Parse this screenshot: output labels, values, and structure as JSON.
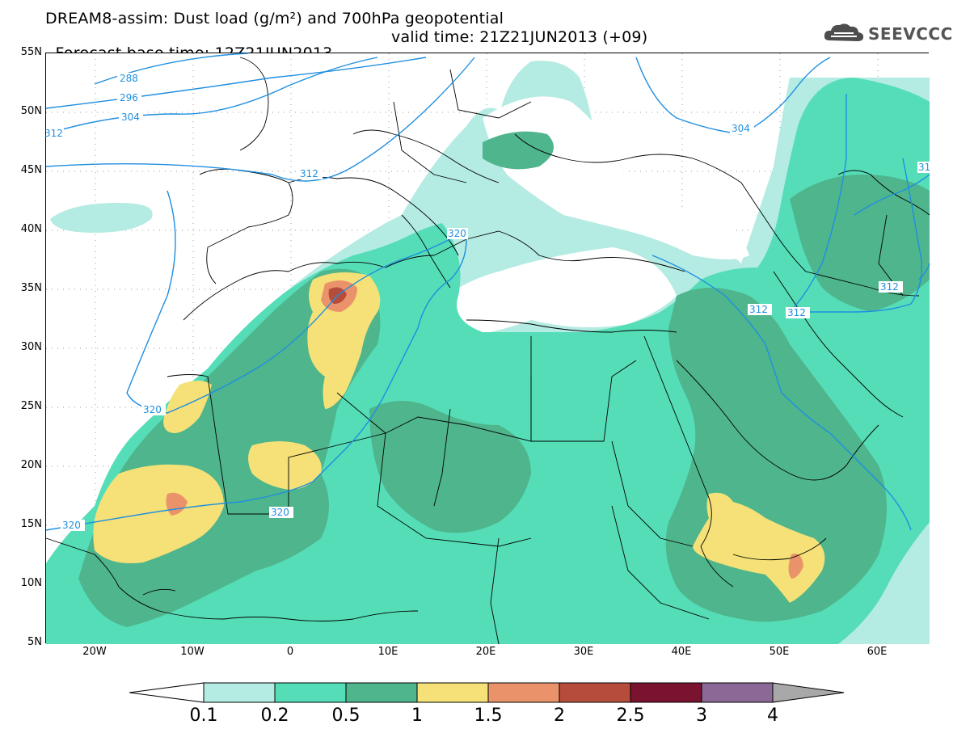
{
  "title": {
    "line1": "DREAM8-assim: Dust load (g/m²) and 700hPa geopotential",
    "line2_base": "Forecast base time: 12Z21JUN2013",
    "line2_valid": "valid time: 21Z21JUN2013 (+09)"
  },
  "logo": {
    "text": "SEEVCCC",
    "icon": "cloud-icon"
  },
  "axes": {
    "lat_labels": [
      "55N",
      "50N",
      "45N",
      "40N",
      "35N",
      "30N",
      "25N",
      "20N",
      "15N",
      "10N",
      "5N"
    ],
    "lon_labels": [
      "20W",
      "10W",
      "0",
      "10E",
      "20E",
      "30E",
      "40E",
      "50E",
      "60E"
    ]
  },
  "contour_labels": [
    "288",
    "296",
    "304",
    "312",
    "312",
    "320",
    "320",
    "320",
    "320",
    "304",
    "312",
    "312",
    "312",
    "31"
  ],
  "colorbar": {
    "levels": [
      "0.1",
      "0.2",
      "0.5",
      "1",
      "1.5",
      "2",
      "2.5",
      "3",
      "4"
    ],
    "colors": [
      "#ffffff",
      "#b4ebe2",
      "#55ddb8",
      "#4fb58c",
      "#f5e177",
      "#ea936b",
      "#b64c3c",
      "#7a1330",
      "#8a6996",
      "#a8a8a8"
    ]
  }
}
